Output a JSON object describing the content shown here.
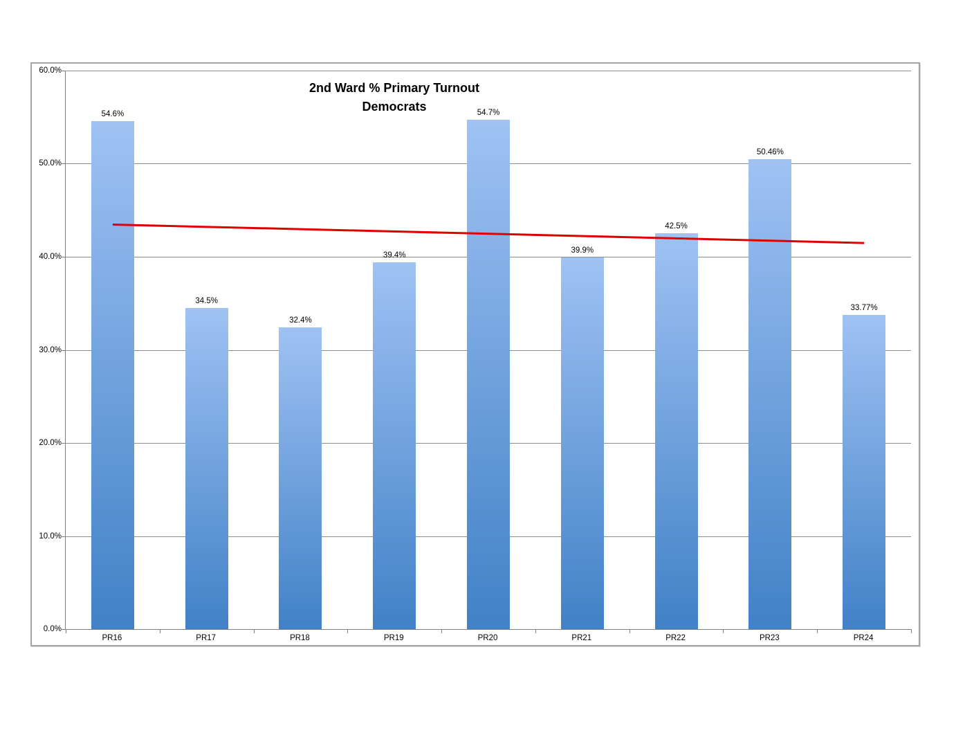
{
  "chart_data": {
    "type": "bar",
    "title": "2nd Ward % Primary Turnout",
    "subtitle": "Democrats",
    "categories": [
      "PR16",
      "PR17",
      "PR18",
      "PR19",
      "PR20",
      "PR21",
      "PR22",
      "PR23",
      "PR24"
    ],
    "values": [
      54.6,
      34.5,
      32.4,
      39.4,
      54.7,
      39.9,
      42.5,
      50.46,
      33.77
    ],
    "data_labels": [
      "54.6%",
      "34.5%",
      "32.4%",
      "39.4%",
      "54.7%",
      "39.9%",
      "42.5%",
      "50.46%",
      "33.77%"
    ],
    "xlabel": "",
    "ylabel": "",
    "ylim": [
      0,
      60
    ],
    "yticks": [
      0,
      10,
      20,
      30,
      40,
      50,
      60
    ],
    "ytick_labels": [
      "0.0%",
      "10.0%",
      "20.0%",
      "30.0%",
      "40.0%",
      "50.0%",
      "60.0%"
    ],
    "grid": true,
    "legend_position": "none",
    "trendline": {
      "type": "linear",
      "start_value": 43.46,
      "end_value": 41.48,
      "color": "#e00000"
    },
    "colors": {
      "bar_gradient_top": "#9fc2f3",
      "bar_gradient_bottom": "#4181c7",
      "gridline": "#8c8c8c",
      "axis": "#7f7f7f",
      "frame_border": "#a3a3a3",
      "text": "#000000"
    }
  }
}
